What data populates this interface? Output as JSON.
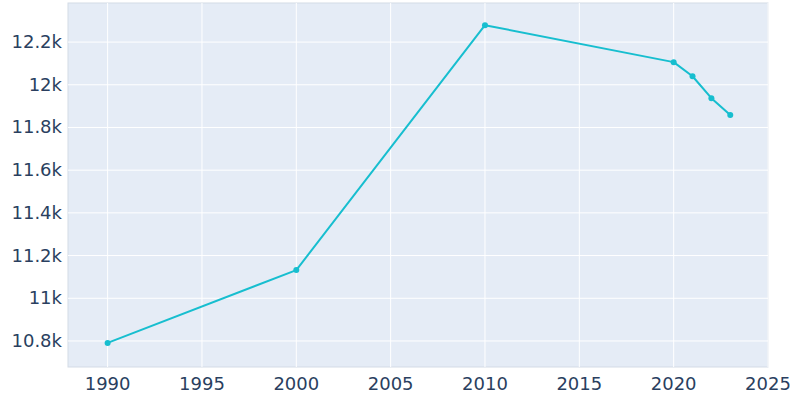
{
  "chart_data": {
    "type": "line",
    "x": [
      1990,
      2000,
      2010,
      2020,
      2021,
      2022,
      2023
    ],
    "values": [
      10791,
      11132,
      12279,
      12106,
      12040,
      11937,
      11858
    ],
    "color": "#17becf",
    "marker": "circle",
    "xlim": [
      1987.9,
      2025
    ],
    "xticks": [
      1990,
      1995,
      2000,
      2005,
      2010,
      2015,
      2020,
      2025
    ],
    "ylim": [
      10678,
      12383
    ],
    "yticks": [
      {
        "value": 10800,
        "label": "10.8k"
      },
      {
        "value": 11000,
        "label": "11k"
      },
      {
        "value": 11200,
        "label": "11.2k"
      },
      {
        "value": 11400,
        "label": "11.4k"
      },
      {
        "value": 11600,
        "label": "11.6k"
      },
      {
        "value": 11800,
        "label": "11.8k"
      },
      {
        "value": 12000,
        "label": "12k"
      },
      {
        "value": 12200,
        "label": "12.2k"
      }
    ],
    "grid": true
  }
}
